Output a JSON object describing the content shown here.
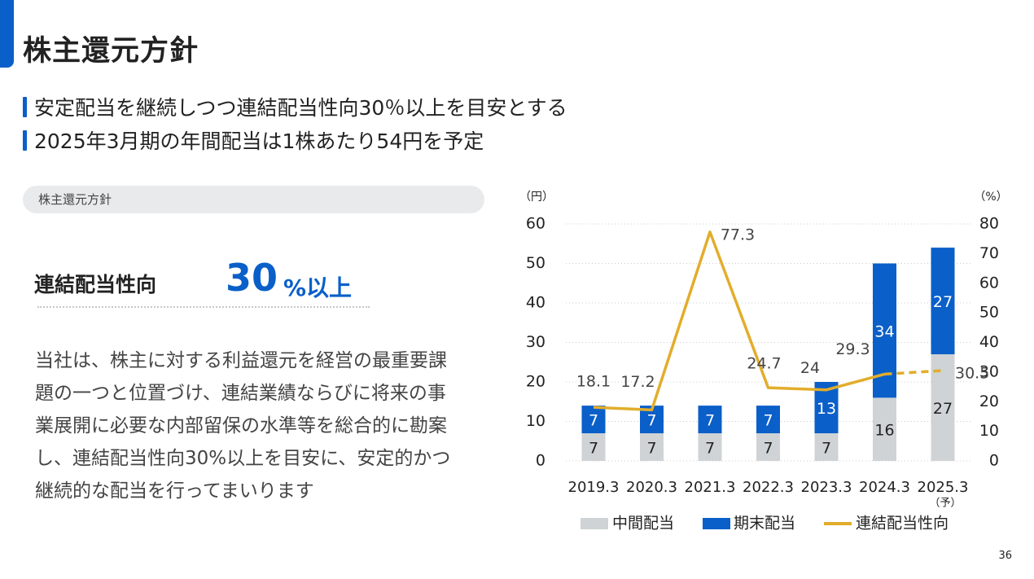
{
  "header": {
    "title": "株主還元方針"
  },
  "bullets": [
    "安定配当を継続しつつ連結配当性向30％以上を目安とする",
    "2025年3月期の年間配当は1株あたり54円を予定"
  ],
  "section": {
    "label": "株主還元方針"
  },
  "kpi": {
    "label": "連結配当性向",
    "value": "30",
    "unit": "%以上"
  },
  "policy_lines": [
    "当社は、株主に対する利益還元を経営の最重要課",
    "題の一つと位置づけ、連結業績ならびに将来の事",
    "業展開に必要な内部留保の水準等を総合的に勘案",
    "し、連結配当性向30%以上を目安に、安定的かつ",
    "継続的な配当を行ってまいります"
  ],
  "page_number": "36",
  "colors": {
    "accent": "#0a5fc9",
    "interim": "#cfd3d5",
    "line": "#e2ad2b"
  },
  "chart_data": {
    "type": "bar",
    "categories": [
      "2019.3",
      "2020.3",
      "2021.3",
      "2022.3",
      "2023.3",
      "2024.3",
      "2025.3"
    ],
    "category_note": {
      "index": 6,
      "text": "（予）"
    },
    "y_left": {
      "unit": "（円）",
      "min": 0,
      "max": 60,
      "ticks": [
        0,
        10,
        20,
        30,
        40,
        50,
        60
      ]
    },
    "y_right": {
      "unit": "（%）",
      "min": 0,
      "max": 80,
      "ticks": [
        0,
        10,
        20,
        30,
        40,
        50,
        60,
        70,
        80
      ]
    },
    "series": [
      {
        "name": "中間配当",
        "kind": "bar",
        "axis": "left",
        "values": [
          7,
          7,
          7,
          7,
          7,
          16,
          27
        ]
      },
      {
        "name": "期末配当",
        "kind": "bar",
        "axis": "left",
        "values": [
          7,
          7,
          7,
          7,
          13,
          34,
          27
        ]
      },
      {
        "name": "連結配当性向",
        "kind": "line",
        "axis": "right",
        "values": [
          18.1,
          17.2,
          77.3,
          24.7,
          24,
          29.3,
          30.5
        ],
        "labels": [
          "18.1",
          "17.2",
          "77.3",
          "24.7",
          "24",
          "29.3",
          "30.5"
        ],
        "forecast_from_index": 5
      }
    ],
    "stacked": true,
    "grid": true,
    "legend_position": "bottom"
  }
}
